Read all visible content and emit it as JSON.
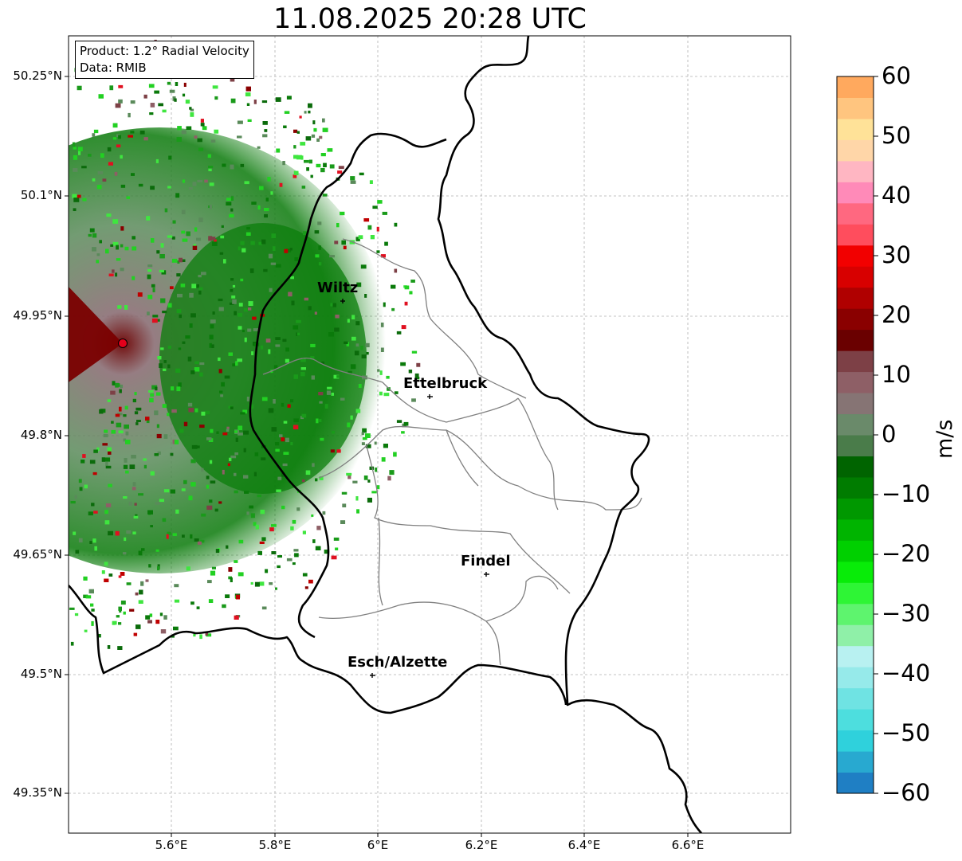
{
  "title": "11.08.2025 20:28 UTC",
  "info": {
    "product_line": "Product: 1.2° Radial Velocity",
    "data_line": "Data: RMIB"
  },
  "map": {
    "lon_range": [
      5.4,
      6.8
    ],
    "lat_range": [
      49.3,
      50.3
    ],
    "lat_ticks": [
      "50.25°N",
      "50.1°N",
      "49.95°N",
      "49.8°N",
      "49.65°N",
      "49.5°N",
      "49.35°N"
    ],
    "lon_ticks": [
      "5.6°E",
      "5.8°E",
      "6°E",
      "6.2°E",
      "6.4°E",
      "6.6°E"
    ],
    "radar_site": {
      "lon": 5.505,
      "lat": 49.914,
      "color": "#e3001b"
    },
    "cities": [
      {
        "name": "Wiltz",
        "lon": 5.93,
        "lat": 49.966
      },
      {
        "name": "Ettelbruck",
        "lon": 6.104,
        "lat": 49.847
      },
      {
        "name": "Findel",
        "lon": 6.21,
        "lat": 49.627
      },
      {
        "name": "Esch/Alzette",
        "lon": 5.99,
        "lat": 49.5
      }
    ]
  },
  "colorbar": {
    "min": -60,
    "max": 60,
    "ticks": [
      "60",
      "50",
      "40",
      "30",
      "20",
      "10",
      "0",
      "−10",
      "−20",
      "−30",
      "−40",
      "−50",
      "−60"
    ],
    "unit": "m/s",
    "colors": [
      "#1f7fc4",
      "#28a9d0",
      "#2fd1dc",
      "#4ddede",
      "#6fe3e3",
      "#96eaea",
      "#b8f1f1",
      "#8ff0a8",
      "#5ef46e",
      "#2ef535",
      "#08ec08",
      "#00d000",
      "#00b400",
      "#009800",
      "#007c00",
      "#006400",
      "#4a7c4a",
      "#6a8a6a",
      "#867474",
      "#8e5f66",
      "#7d4046",
      "#6a0000",
      "#8a0000",
      "#b00000",
      "#d80000",
      "#f20000",
      "#ff4d5d",
      "#ff6880",
      "#ff8ab8",
      "#ffb6c2",
      "#ffd6a8",
      "#ffe298",
      "#ffc57f",
      "#ffa95e"
    ]
  }
}
